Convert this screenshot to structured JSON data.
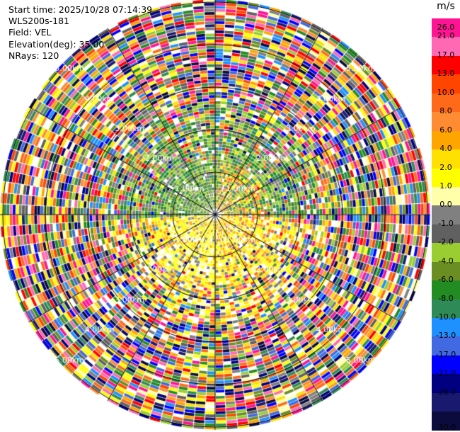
{
  "info": {
    "start_time": "Start time: 2025/10/28 07:14:39",
    "instrument": "WLS200s-181",
    "field": "Field: VEL",
    "elevation": "Elevation(deg): 35.00",
    "nrays": "NRays: 120"
  },
  "ring_labels": [
    "1.00km",
    "2.00km",
    "3.00km",
    "4.00km",
    "5.00km"
  ],
  "colorbar": {
    "unit": "m/s",
    "ticks": [
      "26.0",
      "21.0",
      "17.0",
      "13.0",
      "10.0",
      "8.0",
      "6.0",
      "4.0",
      "2.0",
      "1.0",
      "0.0",
      "-1.0",
      "-2.0",
      "-4.0",
      "-6.0",
      "-8.0",
      "-10.0",
      "-13.0",
      "-17.0",
      "-21.0",
      "-26.0",
      "-30.0"
    ],
    "colors": [
      "#ff1493",
      "#ff69b4",
      "#ff0000",
      "#ff4500",
      "#ff6a1a",
      "#ff8c33",
      "#ffa500",
      "#ffe000",
      "#ffff00",
      "#ffffaa",
      "#808080",
      "#606060",
      "#9acd32",
      "#6b8e23",
      "#228b22",
      "#2e8b57",
      "#1e90ff",
      "#4169e1",
      "#0000ff",
      "#000080",
      "#191970",
      "#0b0b3d"
    ]
  }
}
